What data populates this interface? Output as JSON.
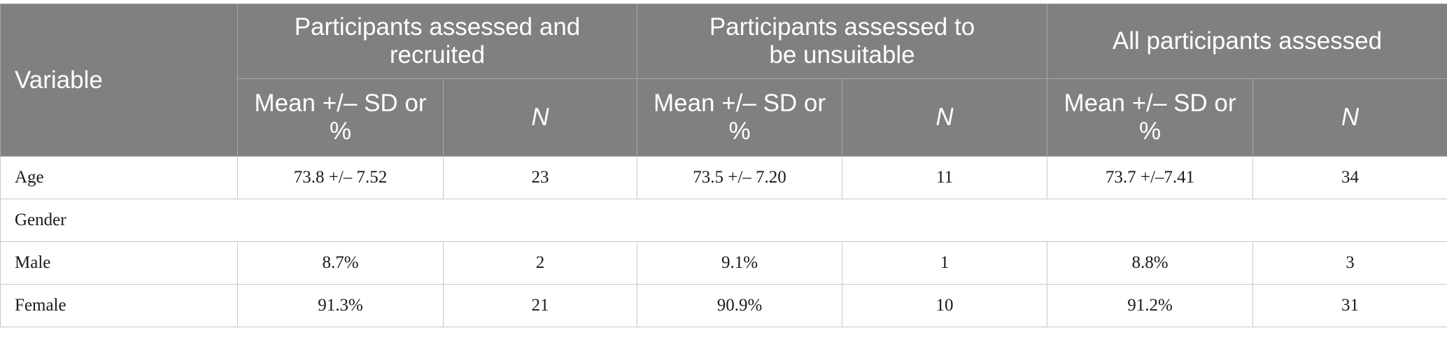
{
  "table": {
    "variable_header": "Variable",
    "groups": [
      "Participants assessed and recruited",
      "Participants assessed to be unsuitable",
      "All participants assessed"
    ],
    "subheaders": [
      "Mean +/– SD or %",
      "N"
    ],
    "rows": [
      {
        "label": "Age",
        "cells": [
          "73.8 +/– 7.52",
          "23",
          "73.5 +/– 7.20",
          "11",
          "73.7 +/–7.41",
          "34"
        ]
      },
      {
        "label": "Gender"
      },
      {
        "label": "Male",
        "cells": [
          "8.7%",
          "2",
          "9.1%",
          "1",
          "8.8%",
          "3"
        ]
      },
      {
        "label": "Female",
        "cells": [
          "91.3%",
          "21",
          "90.9%",
          "10",
          "91.2%",
          "31"
        ]
      }
    ]
  }
}
